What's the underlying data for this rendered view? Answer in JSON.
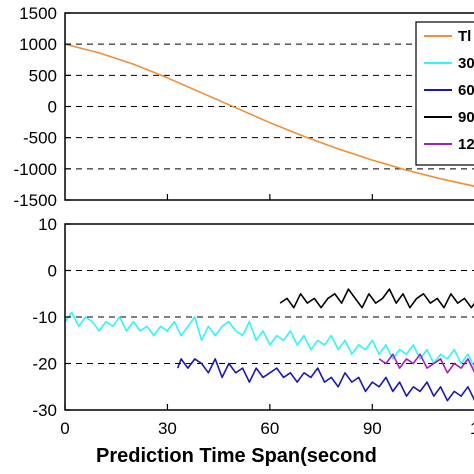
{
  "chart_data": [
    {
      "type": "line",
      "ylim": [
        -1500,
        1500
      ],
      "yticks": [
        "1500",
        "1000",
        "500",
        "0",
        "-500",
        "-1000",
        "-1500"
      ],
      "xlim": [
        0,
        123
      ],
      "grid": "horizontal-dashed",
      "legend": {
        "placement": "top-right",
        "entries": [
          {
            "label": "Tl",
            "color": "#f28e38"
          },
          {
            "label": "30",
            "color": "#32f5f5"
          },
          {
            "label": "60",
            "color": "#1a1ab0"
          },
          {
            "label": "90",
            "color": "#000000"
          },
          {
            "label": "12",
            "color": "#a020c0"
          }
        ]
      },
      "series": [
        {
          "color": "#f28e38",
          "x": [
            0,
            10,
            20,
            30,
            40,
            50,
            60,
            70,
            80,
            90,
            100,
            110,
            120,
            123
          ],
          "y": [
            1000,
            860,
            680,
            460,
            220,
            -20,
            -260,
            -480,
            -680,
            -860,
            -1020,
            -1160,
            -1280,
            -1310
          ]
        }
      ]
    },
    {
      "type": "line",
      "ylim": [
        -30,
        10
      ],
      "yticks": [
        "10",
        "0",
        "-10",
        "-20",
        "-30"
      ],
      "xlim": [
        0,
        123
      ],
      "xticks": [
        "0",
        "30",
        "60",
        "90",
        "1"
      ],
      "xlabel": "Prediction Time Span(second",
      "grid": "horizontal-dashed",
      "series": [
        {
          "color": "#32f5f5",
          "x": [
            0,
            2,
            4,
            6,
            8,
            10,
            12,
            14,
            16,
            18,
            20,
            22,
            24,
            26,
            28,
            30,
            32,
            34,
            36,
            38,
            40,
            42,
            44,
            46,
            48,
            50,
            52,
            54,
            56,
            58,
            60,
            62,
            64,
            66,
            68,
            70,
            72,
            74,
            76,
            78,
            80,
            82,
            84,
            86,
            88,
            90,
            92,
            94,
            96,
            98,
            100,
            102,
            104,
            106,
            108,
            110,
            112,
            114,
            116,
            118,
            120,
            122
          ],
          "y": [
            -11,
            -9,
            -12,
            -10,
            -11,
            -13,
            -11,
            -12,
            -10,
            -13,
            -11,
            -13,
            -12,
            -14,
            -12,
            -13,
            -11,
            -14,
            -12,
            -10,
            -15,
            -12,
            -14,
            -12,
            -11,
            -13,
            -14,
            -11,
            -15,
            -13,
            -16,
            -14,
            -15,
            -13,
            -16,
            -14,
            -17,
            -15,
            -16,
            -14,
            -17,
            -15,
            -18,
            -16,
            -17,
            -15,
            -18,
            -16,
            -19,
            -17,
            -18,
            -16,
            -19,
            -17,
            -20,
            -18,
            -19,
            -17,
            -20,
            -18,
            -21,
            -19
          ]
        },
        {
          "color": "#1a1ab0",
          "x": [
            33,
            34,
            36,
            38,
            40,
            42,
            44,
            46,
            48,
            50,
            52,
            54,
            56,
            58,
            60,
            62,
            64,
            66,
            68,
            70,
            72,
            74,
            76,
            78,
            80,
            82,
            84,
            86,
            88,
            90,
            92,
            94,
            96,
            98,
            100,
            102,
            104,
            106,
            108,
            110,
            112,
            114,
            116,
            118,
            120,
            122
          ],
          "y": [
            -21,
            -19,
            -21,
            -19,
            -20,
            -22,
            -19,
            -23,
            -20,
            -22,
            -21,
            -24,
            -21,
            -23,
            -22,
            -21,
            -23,
            -22,
            -24,
            -22,
            -23,
            -21,
            -24,
            -23,
            -25,
            -22,
            -24,
            -23,
            -26,
            -24,
            -25,
            -23,
            -26,
            -24,
            -27,
            -25,
            -26,
            -24,
            -27,
            -25,
            -28,
            -26,
            -27,
            -25,
            -28,
            -26
          ]
        },
        {
          "color": "#000000",
          "x": [
            63,
            65,
            67,
            69,
            71,
            73,
            75,
            77,
            79,
            81,
            83,
            85,
            87,
            89,
            91,
            93,
            95,
            97,
            99,
            101,
            103,
            105,
            107,
            109,
            111,
            113,
            115,
            117,
            119,
            121,
            123
          ],
          "y": [
            -7,
            -6,
            -8,
            -5,
            -7,
            -6,
            -8,
            -6,
            -5,
            -7,
            -4,
            -6,
            -8,
            -5,
            -7,
            -6,
            -4,
            -7,
            -5,
            -8,
            -6,
            -5,
            -7,
            -6,
            -8,
            -5,
            -7,
            -6,
            -8,
            -6,
            -7
          ]
        },
        {
          "color": "#a020c0",
          "x": [
            92,
            94,
            96,
            98,
            100,
            102,
            104,
            106,
            108,
            110,
            112,
            114,
            116,
            118,
            120,
            122,
            123
          ],
          "y": [
            -19,
            -20,
            -18,
            -21,
            -19,
            -20,
            -18,
            -21,
            -20,
            -19,
            -22,
            -20,
            -21,
            -19,
            -22,
            -20,
            -21
          ]
        }
      ]
    }
  ]
}
